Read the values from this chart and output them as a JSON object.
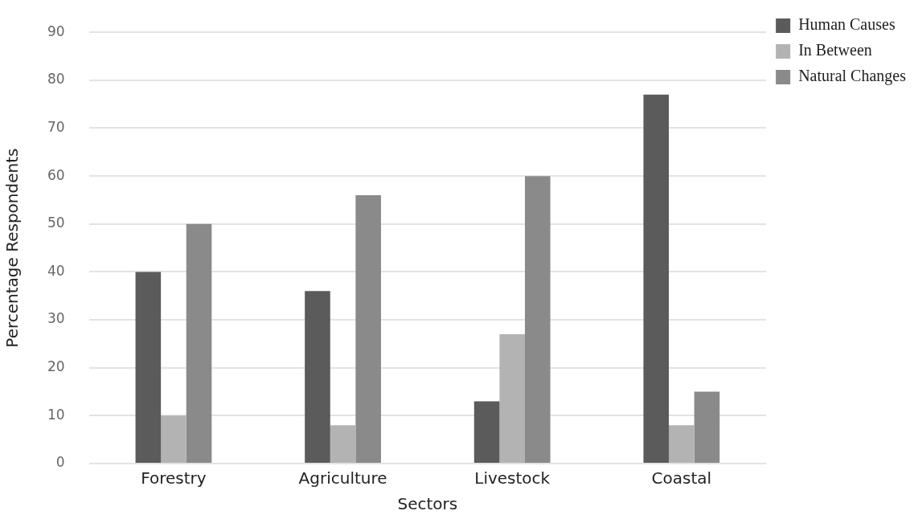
{
  "chart_data": {
    "type": "bar",
    "xlabel": "Sectors",
    "ylabel": "Percentage Respondents",
    "categories": [
      "Forestry",
      "Agriculture",
      "Livestock",
      "Coastal"
    ],
    "series": [
      {
        "name": "Human Causes",
        "color": "#5b5b5b",
        "values": [
          40,
          36,
          13,
          77
        ]
      },
      {
        "name": "In Between",
        "color": "#b3b3b3",
        "values": [
          10,
          8,
          27,
          8
        ]
      },
      {
        "name": "Natural Changes",
        "color": "#8a8a8a",
        "values": [
          50,
          56,
          60,
          15
        ]
      }
    ],
    "ylim": [
      0,
      90
    ],
    "yticks": [
      0,
      10,
      20,
      30,
      40,
      50,
      60,
      70,
      80,
      90
    ],
    "grid": "y",
    "legend": "top right"
  }
}
